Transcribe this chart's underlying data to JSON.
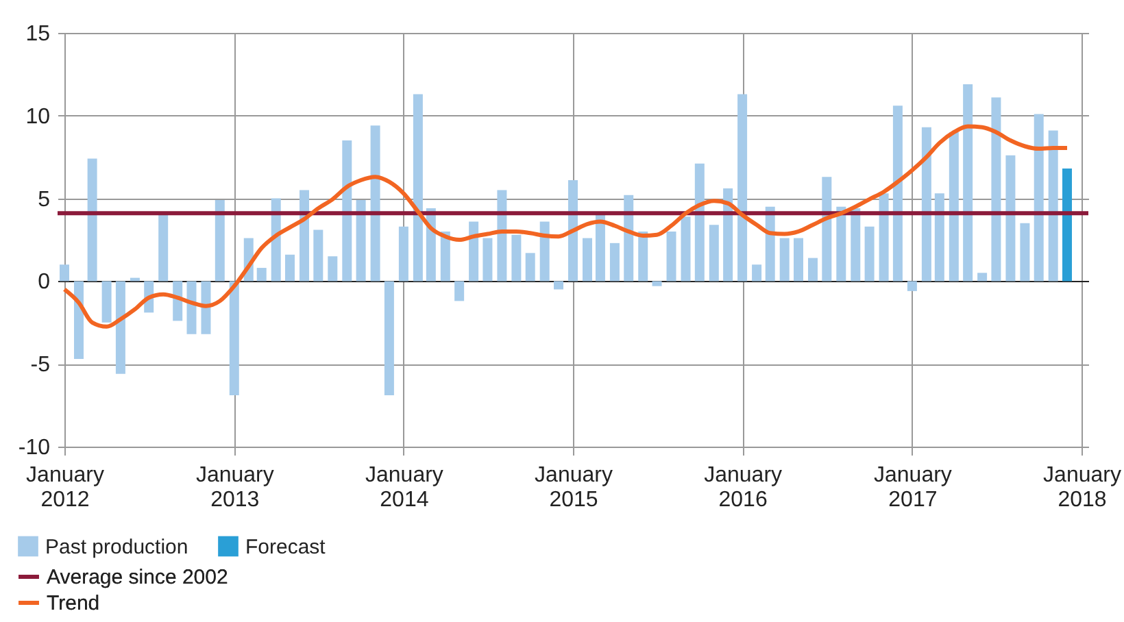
{
  "chart_data": {
    "type": "bar",
    "x": [
      "2012-01",
      "2012-02",
      "2012-03",
      "2012-04",
      "2012-05",
      "2012-06",
      "2012-07",
      "2012-08",
      "2012-09",
      "2012-10",
      "2012-11",
      "2012-12",
      "2013-01",
      "2013-02",
      "2013-03",
      "2013-04",
      "2013-05",
      "2013-06",
      "2013-07",
      "2013-08",
      "2013-09",
      "2013-10",
      "2013-11",
      "2013-12",
      "2014-01",
      "2014-02",
      "2014-03",
      "2014-04",
      "2014-05",
      "2014-06",
      "2014-07",
      "2014-08",
      "2014-09",
      "2014-10",
      "2014-11",
      "2014-12",
      "2015-01",
      "2015-02",
      "2015-03",
      "2015-04",
      "2015-05",
      "2015-06",
      "2015-07",
      "2015-08",
      "2015-09",
      "2015-10",
      "2015-11",
      "2015-12",
      "2016-01",
      "2016-02",
      "2016-03",
      "2016-04",
      "2016-05",
      "2016-06",
      "2016-07",
      "2016-08",
      "2016-09",
      "2016-10",
      "2016-11",
      "2016-12",
      "2017-01",
      "2017-02",
      "2017-03",
      "2017-04",
      "2017-05",
      "2017-06",
      "2017-07",
      "2017-08",
      "2017-09",
      "2017-10",
      "2017-11",
      "2017-12"
    ],
    "series": [
      {
        "name": "Past production",
        "color": "#a6cbea",
        "values": [
          1.0,
          -4.7,
          7.4,
          -2.5,
          -5.6,
          0.2,
          -1.9,
          4.0,
          -2.4,
          -3.2,
          -3.2,
          4.9,
          -6.9,
          2.6,
          0.8,
          5.0,
          1.6,
          5.5,
          3.1,
          1.5,
          8.5,
          4.9,
          9.4,
          -6.9,
          3.3,
          11.3,
          4.4,
          3.0,
          -1.2,
          3.6,
          2.6,
          5.5,
          2.8,
          1.7,
          3.6,
          -0.5,
          6.1,
          2.6,
          4.0,
          2.3,
          5.2,
          3.0,
          -0.3,
          3.0,
          3.9,
          7.1,
          3.4,
          5.6,
          11.3,
          1.0,
          4.5,
          2.6,
          2.6,
          1.4,
          6.3,
          4.5,
          4.4,
          3.3,
          5.3,
          10.6,
          -0.6,
          9.3,
          5.3,
          9.0,
          11.9,
          0.5,
          11.1,
          7.6,
          3.5,
          10.1,
          9.1,
          null
        ]
      },
      {
        "name": "Forecast",
        "color": "#2a9fd6",
        "values": [
          null,
          null,
          null,
          null,
          null,
          null,
          null,
          null,
          null,
          null,
          null,
          null,
          null,
          null,
          null,
          null,
          null,
          null,
          null,
          null,
          null,
          null,
          null,
          null,
          null,
          null,
          null,
          null,
          null,
          null,
          null,
          null,
          null,
          null,
          null,
          null,
          null,
          null,
          null,
          null,
          null,
          null,
          null,
          null,
          null,
          null,
          null,
          null,
          null,
          null,
          null,
          null,
          null,
          null,
          null,
          null,
          null,
          null,
          null,
          null,
          null,
          null,
          null,
          null,
          null,
          null,
          null,
          null,
          null,
          null,
          null,
          6.8
        ]
      },
      {
        "name": "Trend",
        "type": "line",
        "color": "#f26522",
        "values": [
          -0.5,
          -1.3,
          -2.5,
          -2.75,
          -2.3,
          -1.7,
          -1.0,
          -0.8,
          -1.0,
          -1.3,
          -1.5,
          -1.2,
          -0.3,
          0.9,
          2.0,
          2.75,
          3.25,
          3.75,
          4.4,
          4.95,
          5.7,
          6.1,
          6.3,
          6.0,
          5.3,
          4.2,
          3.2,
          2.7,
          2.5,
          2.7,
          2.85,
          3.0,
          3.0,
          2.9,
          2.75,
          2.7,
          3.05,
          3.45,
          3.6,
          3.35,
          3.0,
          2.75,
          2.8,
          3.35,
          4.1,
          4.6,
          4.85,
          4.7,
          4.0,
          3.4,
          2.9,
          2.85,
          3.0,
          3.4,
          3.8,
          4.1,
          4.5,
          4.95,
          5.4,
          6.0,
          6.7,
          7.5,
          8.35,
          9.0,
          9.35,
          9.3,
          9.0,
          8.5,
          8.15,
          8.0,
          8.05,
          8.05
        ]
      }
    ],
    "ref_lines": [
      {
        "axis": "y",
        "value": 4.1,
        "label": "Average since 2002",
        "color": "#8b1a3a"
      }
    ],
    "xlim": [
      "2012-01",
      "2018-01"
    ],
    "xticks": [
      {
        "value": "2012-01",
        "label": "January 2012"
      },
      {
        "value": "2013-01",
        "label": "January 2013"
      },
      {
        "value": "2014-01",
        "label": "January 2014"
      },
      {
        "value": "2015-01",
        "label": "January 2015"
      },
      {
        "value": "2016-01",
        "label": "January 2016"
      },
      {
        "value": "2017-01",
        "label": "January 2017"
      },
      {
        "value": "2018-01",
        "label": "January 2018"
      }
    ],
    "ylim": [
      -10,
      15
    ],
    "yticks": [
      -10,
      -5,
      0,
      5,
      10,
      15
    ],
    "grid": true,
    "legend": "bottom left"
  }
}
